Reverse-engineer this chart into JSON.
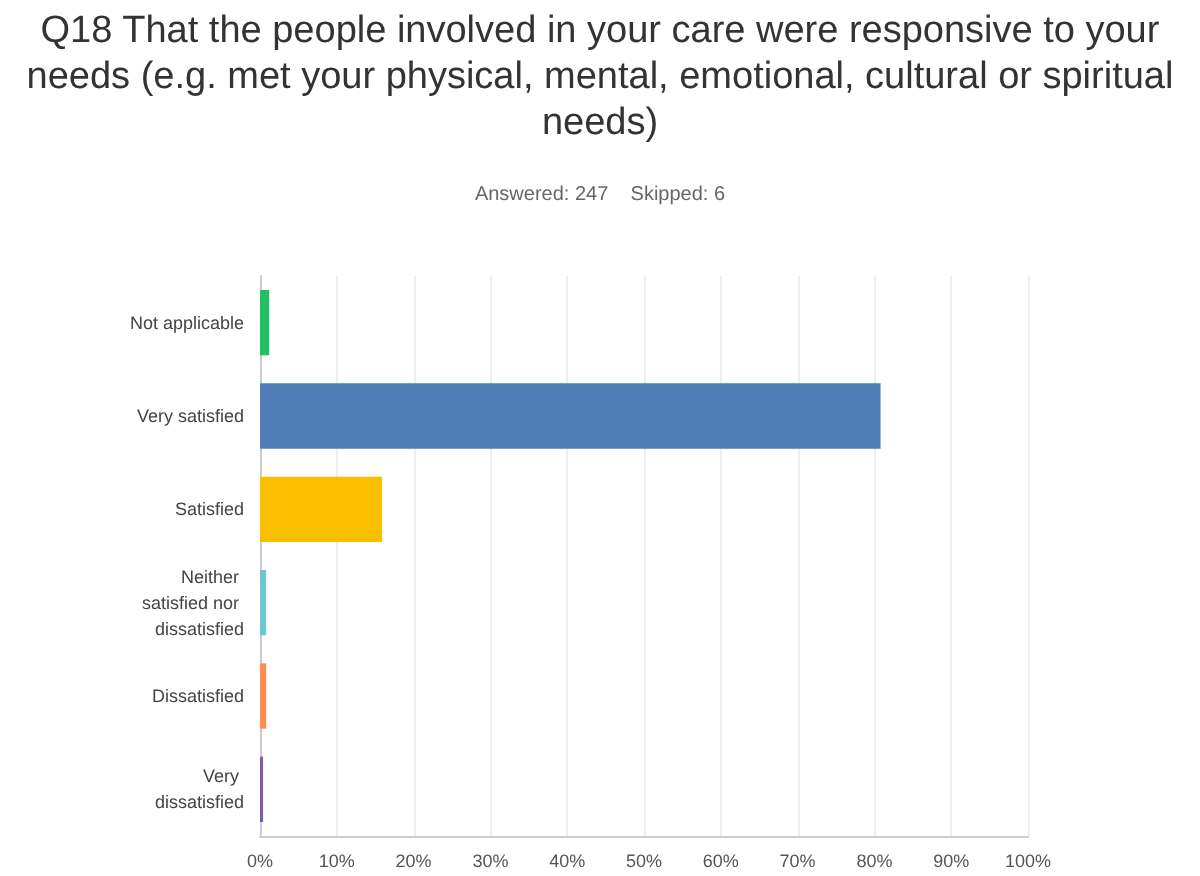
{
  "chart_data": {
    "type": "bar",
    "orientation": "horizontal",
    "title": "Q18 That the people involved in your care were responsive to your needs (e.g. met your physical, mental, emotional, cultural or spiritual needs)",
    "subtitle": "Answered: 247    Skipped: 6",
    "categories": [
      "Not applicable",
      "Very satisfied",
      "Satisfied",
      "Neither satisfied nor dissatisfied",
      "Dissatisfied",
      "Very dissatisfied"
    ],
    "values": [
      1.2,
      80.8,
      15.9,
      0.8,
      0.8,
      0.4
    ],
    "colors": [
      "#21c063",
      "#507cb6",
      "#f9be00",
      "#6bc8cd",
      "#ff8b4f",
      "#7d5ba6"
    ],
    "xlim": [
      0,
      100
    ],
    "xticks": [
      {
        "value": 0,
        "label": "0%"
      },
      {
        "value": 10,
        "label": "10%"
      },
      {
        "value": 20,
        "label": "20%"
      },
      {
        "value": 30,
        "label": "30%"
      },
      {
        "value": 40,
        "label": "40%"
      },
      {
        "value": 50,
        "label": "50%"
      },
      {
        "value": 60,
        "label": "60%"
      },
      {
        "value": 70,
        "label": "70%"
      },
      {
        "value": 80,
        "label": "80%"
      },
      {
        "value": 90,
        "label": "90%"
      },
      {
        "value": 100,
        "label": "100%"
      }
    ],
    "grid": "x"
  }
}
